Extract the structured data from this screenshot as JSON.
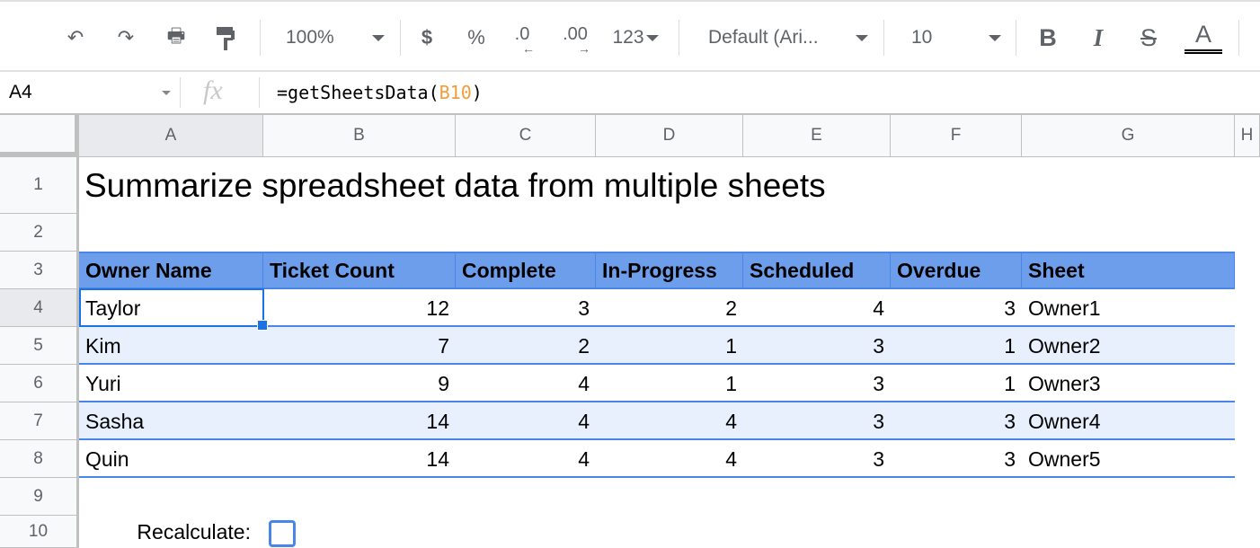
{
  "toolbar": {
    "zoom": "100%",
    "currency": "$",
    "percent": "%",
    "dec_decrease": ".0",
    "dec_increase": ".00",
    "more_formats": "123",
    "font": "Default (Ari...",
    "font_size": "10",
    "bold": "B",
    "italic": "I",
    "strike": "S",
    "text_color": "A"
  },
  "formula_bar": {
    "cell_ref": "A4",
    "fx": "fx",
    "formula_prefix": "=getSheetsData(",
    "formula_ref": "B10",
    "formula_suffix": ")",
    "ref_color": "#f09d3c"
  },
  "columns": [
    "A",
    "B",
    "C",
    "D",
    "E",
    "F",
    "G",
    "H"
  ],
  "rows": [
    "1",
    "2",
    "3",
    "4",
    "5",
    "6",
    "7",
    "8",
    "9",
    "10"
  ],
  "title": "Summarize spreadsheet data from multiple sheets",
  "table": {
    "headers": [
      "Owner Name",
      "Ticket Count",
      "Complete",
      "In-Progress",
      "Scheduled",
      "Overdue",
      "Sheet"
    ],
    "rows": [
      [
        "Taylor",
        "12",
        "3",
        "2",
        "4",
        "3",
        "Owner1"
      ],
      [
        "Kim",
        "7",
        "2",
        "1",
        "3",
        "1",
        "Owner2"
      ],
      [
        "Yuri",
        "9",
        "4",
        "1",
        "3",
        "1",
        "Owner3"
      ],
      [
        "Sasha",
        "14",
        "4",
        "4",
        "3",
        "3",
        "Owner4"
      ],
      [
        "Quin",
        "14",
        "4",
        "4",
        "3",
        "3",
        "Owner5"
      ]
    ],
    "header_color": "#6d9eeb",
    "band_color": "#e8f0fe"
  },
  "recalculate": {
    "label": "Recalculate:",
    "checked": false
  }
}
